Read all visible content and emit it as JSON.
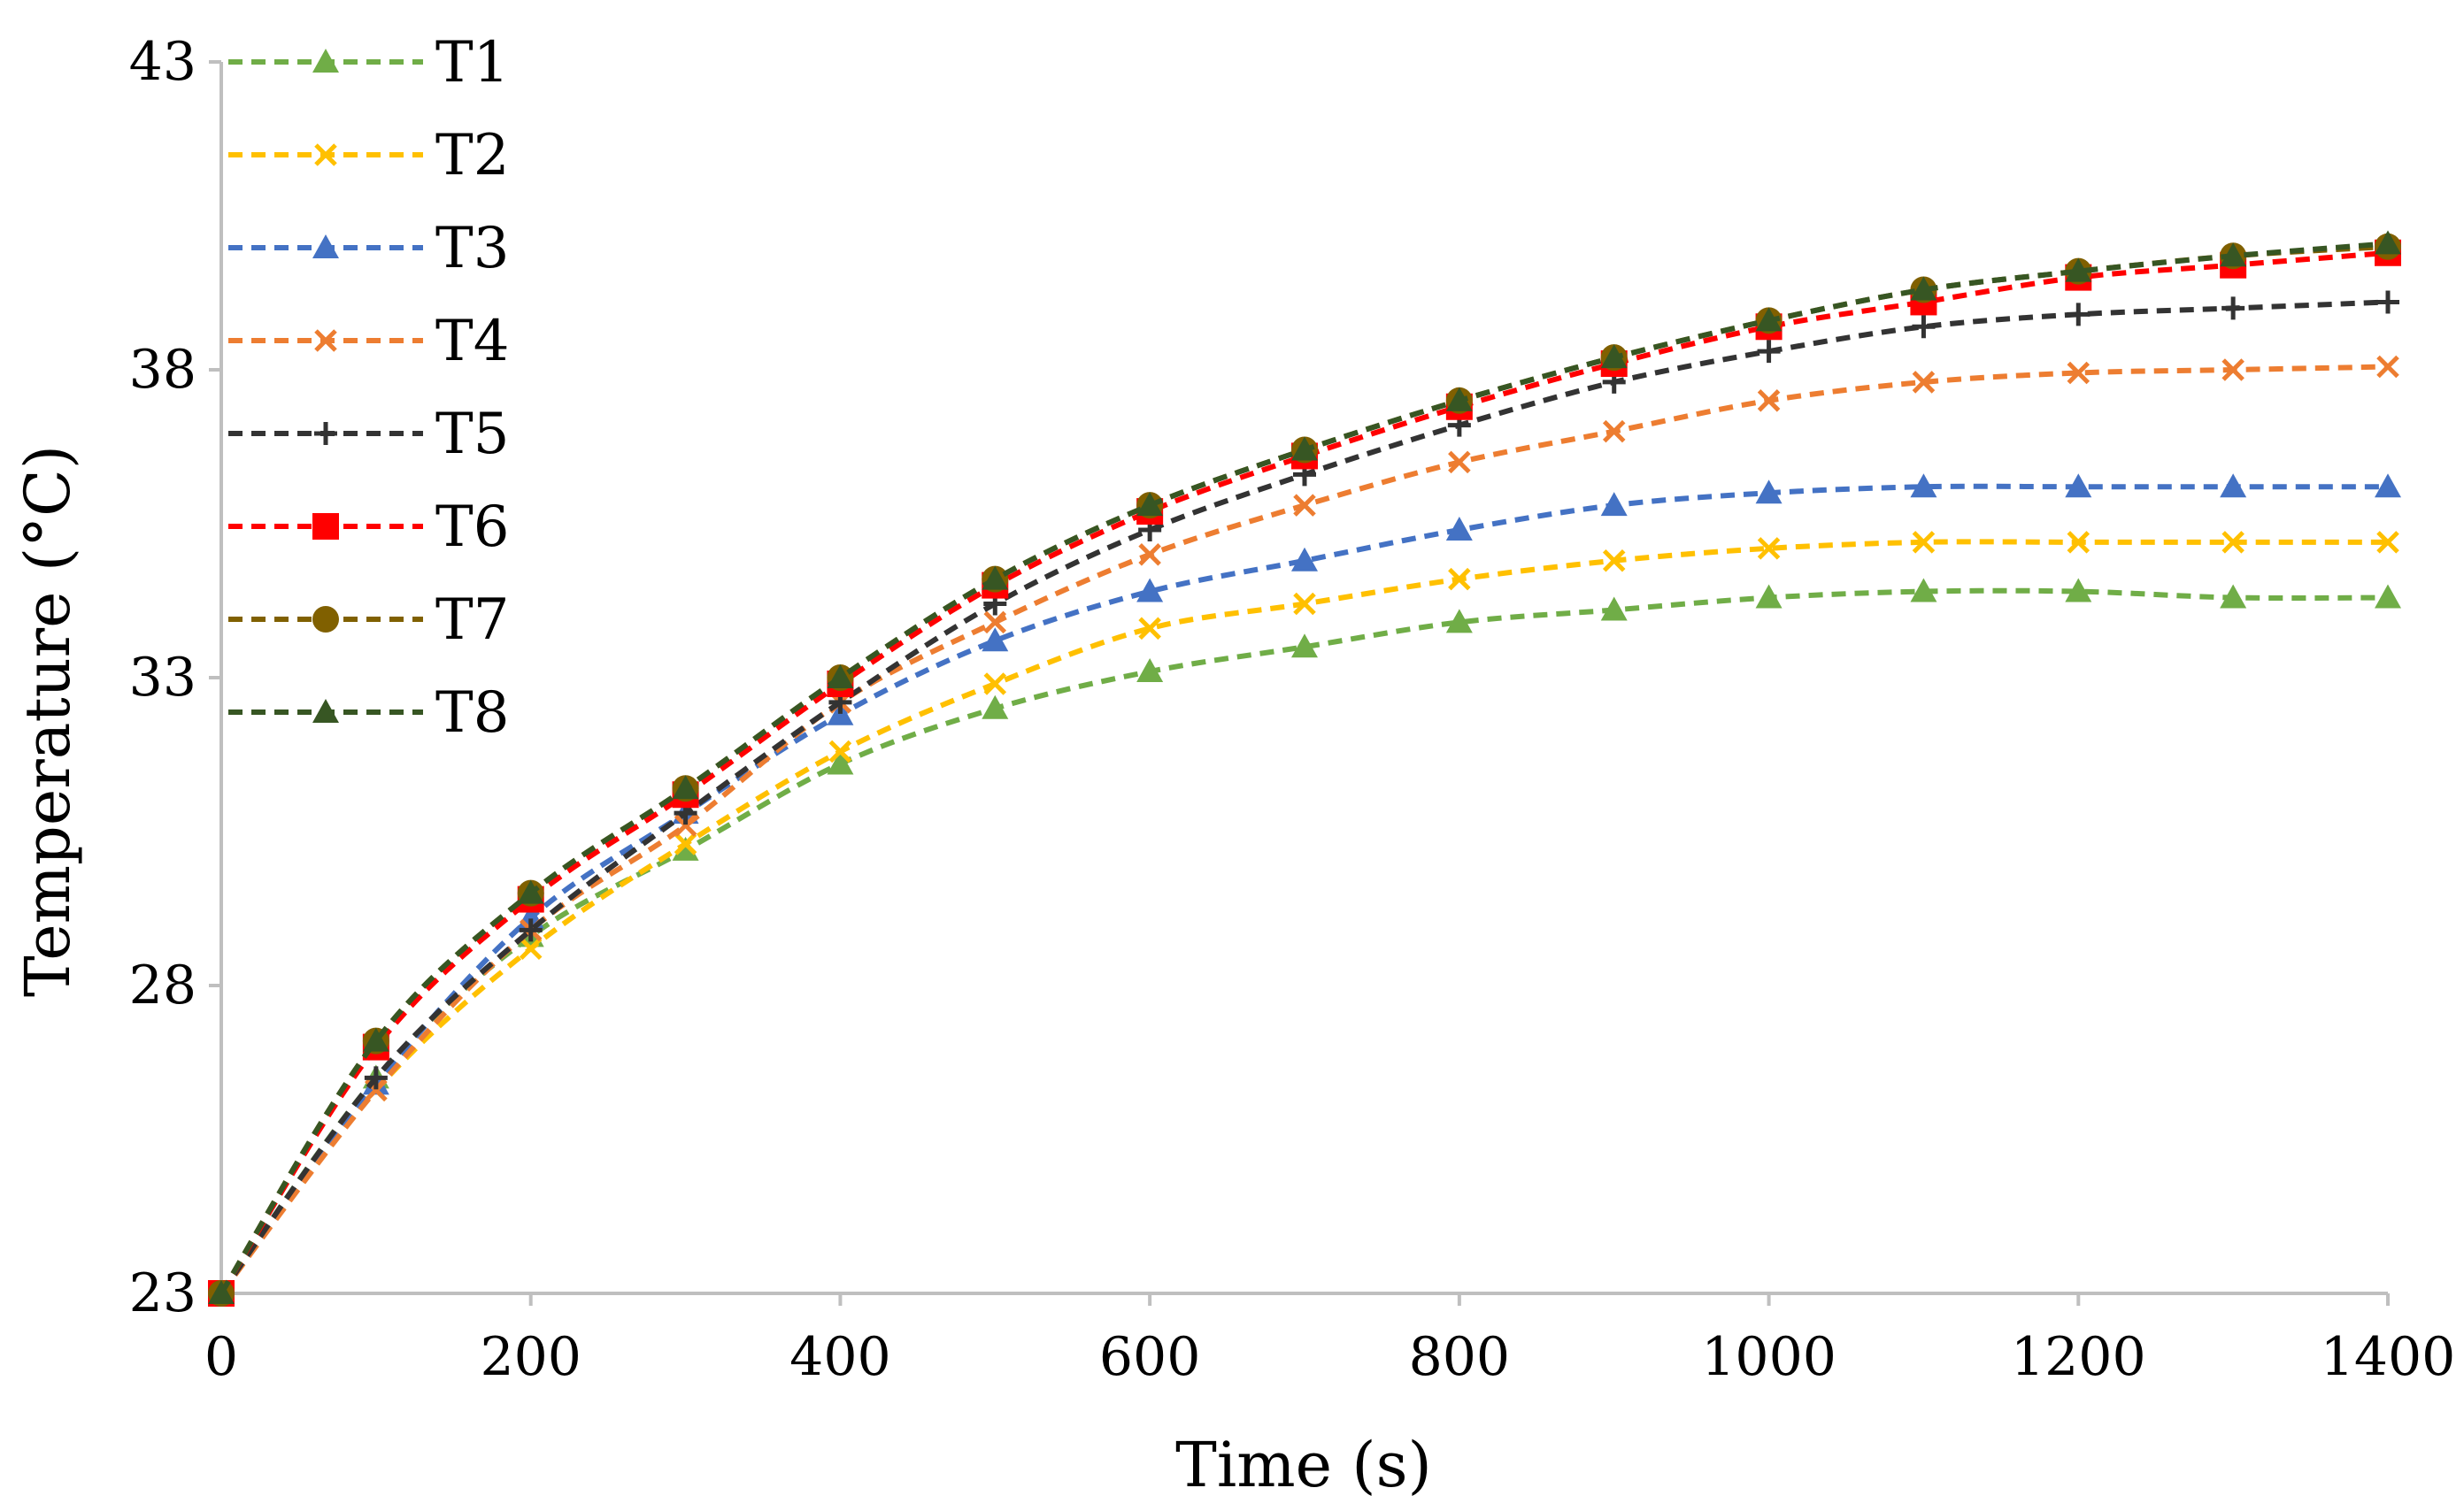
{
  "chart_data": {
    "type": "line",
    "title": "",
    "xlabel": "Time (s)",
    "ylabel": "Temperature (°C)",
    "xlim": [
      0,
      1400
    ],
    "ylim": [
      23,
      43
    ],
    "xticks": [
      0,
      200,
      400,
      600,
      800,
      1000,
      1200,
      1400
    ],
    "yticks": [
      23,
      28,
      33,
      38,
      43
    ],
    "grid": false,
    "legend_position": "top-left",
    "x": [
      0,
      100,
      200,
      300,
      400,
      500,
      600,
      700,
      800,
      900,
      1000,
      1100,
      1200,
      1300,
      1400
    ],
    "series": [
      {
        "name": "T1",
        "color": "#70AD47",
        "marker": "triangle",
        "values": [
          23.0,
          26.5,
          28.8,
          30.2,
          31.6,
          32.5,
          33.1,
          33.5,
          33.9,
          34.1,
          34.3,
          34.4,
          34.4,
          34.3,
          34.3
        ]
      },
      {
        "name": "T2",
        "color": "#FFC000",
        "marker": "x",
        "values": [
          23.0,
          26.3,
          28.6,
          30.3,
          31.8,
          32.9,
          33.8,
          34.2,
          34.6,
          34.9,
          35.1,
          35.2,
          35.2,
          35.2,
          35.2
        ]
      },
      {
        "name": "T3",
        "color": "#4472C4",
        "marker": "triangle",
        "values": [
          23.0,
          26.4,
          29.1,
          30.8,
          32.4,
          33.6,
          34.4,
          34.9,
          35.4,
          35.8,
          36.0,
          36.1,
          36.1,
          36.1,
          36.1
        ]
      },
      {
        "name": "T4",
        "color": "#ED7D31",
        "marker": "x",
        "values": [
          23.0,
          26.3,
          28.9,
          30.6,
          32.6,
          33.9,
          35.0,
          35.8,
          36.5,
          37.0,
          37.5,
          37.8,
          37.95,
          38.0,
          38.05
        ]
      },
      {
        "name": "T5",
        "color": "#333333",
        "marker": "plus",
        "values": [
          23.0,
          26.5,
          28.9,
          30.8,
          32.6,
          34.2,
          35.4,
          36.3,
          37.1,
          37.8,
          38.3,
          38.7,
          38.9,
          39.0,
          39.1
        ]
      },
      {
        "name": "T6",
        "color": "#FF0000",
        "marker": "square",
        "values": [
          23.0,
          27.0,
          29.4,
          31.1,
          32.9,
          34.5,
          35.7,
          36.6,
          37.4,
          38.1,
          38.7,
          39.1,
          39.5,
          39.7,
          39.9
        ]
      },
      {
        "name": "T7",
        "color": "#806000",
        "marker": "circle",
        "values": [
          23.0,
          27.1,
          29.5,
          31.2,
          33.0,
          34.6,
          35.8,
          36.7,
          37.5,
          38.2,
          38.8,
          39.3,
          39.6,
          39.85,
          40.0
        ]
      },
      {
        "name": "T8",
        "color": "#375623",
        "marker": "triangle",
        "values": [
          23.0,
          27.1,
          29.5,
          31.2,
          33.0,
          34.6,
          35.8,
          36.7,
          37.5,
          38.2,
          38.8,
          39.3,
          39.6,
          39.85,
          40.05
        ]
      }
    ]
  }
}
